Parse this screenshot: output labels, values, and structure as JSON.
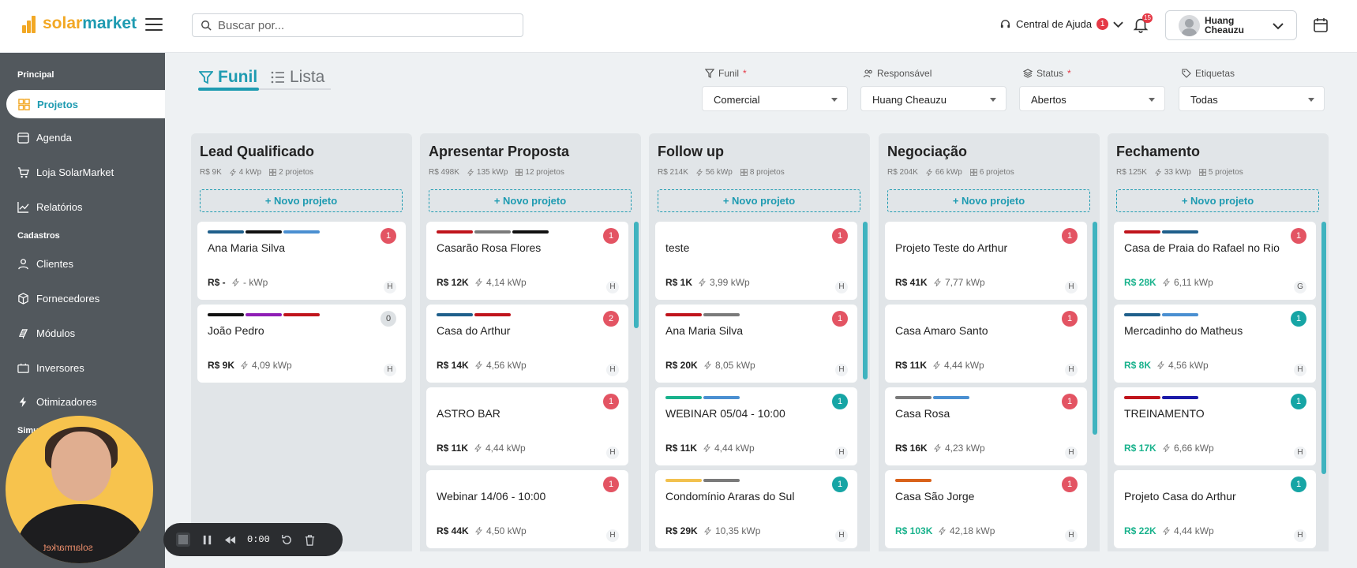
{
  "brand": {
    "part1": "solar",
    "part2": "market",
    "accent": "#1e9bb1",
    "logo_color": "#f2a825"
  },
  "search": {
    "placeholder": "Buscar por..."
  },
  "header": {
    "help_label": "Central de Ajuda",
    "help_badge": "1",
    "notifications_badge": "15",
    "user_name_line1": "Huang",
    "user_name_line2": "Cheauzu"
  },
  "sidebar": {
    "sections": [
      "Principal",
      "Cadastros",
      "Simu"
    ],
    "items": [
      {
        "label": "Projetos",
        "icon": "grid-icon"
      },
      {
        "label": "Agenda",
        "icon": "calendar-icon"
      },
      {
        "label": "Loja SolarMarket",
        "icon": "cart-icon"
      },
      {
        "label": "Relatórios",
        "icon": "chart-icon"
      },
      {
        "label": "Clientes",
        "icon": "user-icon"
      },
      {
        "label": "Fornecedores",
        "icon": "box-icon"
      },
      {
        "label": "Módulos",
        "icon": "panel-icon"
      },
      {
        "label": "Inversores",
        "icon": "inverter-icon"
      },
      {
        "label": "Otimizadores",
        "icon": "bolt-icon"
      }
    ]
  },
  "views": {
    "funil": "Funil",
    "lista": "Lista"
  },
  "filters": [
    {
      "label": "Funil",
      "required": "*",
      "value": "Comercial"
    },
    {
      "label": "Responsável",
      "required": "",
      "value": "Huang Cheauzu"
    },
    {
      "label": "Status",
      "required": "*",
      "value": "Abertos"
    },
    {
      "label": "Etiquetas",
      "required": "",
      "value": "Todas"
    }
  ],
  "board": {
    "new_label": "+ Novo projeto",
    "columns": [
      {
        "title": "Lead Qualificado",
        "value": "R$ 9K",
        "kwp": "4 kWp",
        "projects": "2 projetos",
        "cards": [
          {
            "name": "Ana Maria Silva",
            "value": "R$ -",
            "kwp": "- kWp",
            "count": "1",
            "initial": "H",
            "tags": [
              "#1f5f8b",
              "#111111",
              "#4a8fd1"
            ]
          },
          {
            "name": "João Pedro",
            "value": "R$ 9K",
            "kwp": "4,09 kWp",
            "count": "0",
            "initial": "H",
            "tags": [
              "#111111",
              "#8e1db5",
              "#c0141c"
            ]
          }
        ]
      },
      {
        "title": "Apresentar Proposta",
        "value": "R$ 498K",
        "kwp": "135 kWp",
        "projects": "12 projetos",
        "cards": [
          {
            "name": "Casarão Rosa Flores",
            "value": "R$ 12K",
            "kwp": "4,14 kWp",
            "count": "1",
            "initial": "H",
            "tags": [
              "#c0141c",
              "#7a7a7a",
              "#111111"
            ]
          },
          {
            "name": "Casa do Arthur",
            "value": "R$ 14K",
            "kwp": "4,56 kWp",
            "count": "2",
            "initial": "H",
            "tags": [
              "#1f5f8b",
              "#c0141c"
            ]
          },
          {
            "name": "ASTRO BAR",
            "value": "R$ 11K",
            "kwp": "4,44 kWp",
            "count": "1",
            "initial": "H",
            "tags": []
          },
          {
            "name": "Webinar 14/06 - 10:00",
            "value": "R$ 44K",
            "kwp": "4,50 kWp",
            "count": "1",
            "initial": "H",
            "tags": []
          }
        ]
      },
      {
        "title": "Follow up",
        "value": "R$ 214K",
        "kwp": "56 kWp",
        "projects": "8 projetos",
        "cards": [
          {
            "name": "teste",
            "value": "R$ 1K",
            "kwp": "3,99 kWp",
            "count": "1",
            "initial": "H",
            "tags": []
          },
          {
            "name": "Ana Maria Silva",
            "value": "R$ 20K",
            "kwp": "8,05 kWp",
            "count": "1",
            "initial": "H",
            "tags": [
              "#c0141c",
              "#7a7a7a"
            ]
          },
          {
            "name": "WEBINAR 05/04 - 10:00",
            "value": "R$ 11K",
            "kwp": "4,44 kWp",
            "count": "1",
            "initial": "H",
            "tags": [
              "#19b28c",
              "#4a8fd1"
            ]
          },
          {
            "name": "Condomínio Araras do Sul",
            "value": "R$ 29K",
            "kwp": "10,35 kWp",
            "count": "1",
            "initial": "H",
            "tags": [
              "#f2c14e",
              "#7a7a7a"
            ]
          }
        ]
      },
      {
        "title": "Negociação",
        "value": "R$ 204K",
        "kwp": "66 kWp",
        "projects": "6 projetos",
        "cards": [
          {
            "name": "Projeto Teste do Arthur",
            "value": "R$ 41K",
            "kwp": "7,77 kWp",
            "count": "1",
            "initial": "H",
            "tags": []
          },
          {
            "name": "Casa Amaro Santo",
            "value": "R$ 11K",
            "kwp": "4,44 kWp",
            "count": "1",
            "initial": "H",
            "tags": []
          },
          {
            "name": "Casa Rosa",
            "value": "R$ 16K",
            "kwp": "4,23 kWp",
            "count": "1",
            "initial": "H",
            "tags": [
              "#7a7a7a",
              "#4a8fd1"
            ]
          },
          {
            "name": "Casa São Jorge",
            "value": "R$ 103K",
            "kwp": "42,18 kWp",
            "count": "1",
            "initial": "H",
            "tags": [
              "#d9621a"
            ]
          }
        ]
      },
      {
        "title": "Fechamento",
        "value": "R$ 125K",
        "kwp": "33 kWp",
        "projects": "5 projetos",
        "cards": [
          {
            "name": "Casa de Praia do Rafael no Rio",
            "value": "R$ 28K",
            "kwp": "6,11 kWp",
            "count": "1",
            "initial": "G",
            "tags": [
              "#c0141c",
              "#1f5f8b"
            ]
          },
          {
            "name": "Mercadinho do Matheus",
            "value": "R$ 8K",
            "kwp": "4,56 kWp",
            "count": "1",
            "initial": "H",
            "tags": [
              "#1f5f8b",
              "#4a8fd1"
            ]
          },
          {
            "name": "TREINAMENTO",
            "value": "R$ 17K",
            "kwp": "6,66 kWp",
            "count": "1",
            "initial": "H",
            "tags": [
              "#c0141c",
              "#1b1aa8"
            ]
          },
          {
            "name": "Projeto Casa do Arthur",
            "value": "R$ 22K",
            "kwp": "4,44 kWp",
            "count": "1",
            "initial": "H",
            "tags": []
          }
        ]
      }
    ]
  },
  "recorder": {
    "time": "0:00"
  },
  "webcam": {
    "shirt_text": "solarmarket"
  }
}
